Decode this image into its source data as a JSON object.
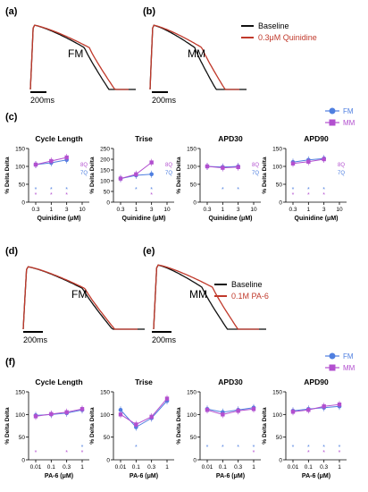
{
  "colors": {
    "fm": "#4f7fe0",
    "mm": "#b24fcf",
    "baseline": "#111111",
    "drug": "#c0392b",
    "sig_fm": "#4f7fe0",
    "sig_mm": "#b24fcf"
  },
  "trace_panels": [
    {
      "label": "(a)",
      "name": "FM",
      "scale": "200ms"
    },
    {
      "label": "(b)",
      "name": "MM",
      "scale": "200ms"
    },
    {
      "label": "(d)",
      "name": "FM",
      "scale": "200ms"
    },
    {
      "label": "(e)",
      "name": "MM",
      "scale": "200ms"
    }
  ],
  "legends": {
    "top": {
      "baseline": "Baseline",
      "drug": "0.3μM Quinidine"
    },
    "bottom": {
      "baseline": "Baseline",
      "drug": "0.1M PA-6"
    },
    "c": {
      "fm": "FM",
      "mm": "MM"
    },
    "f": {
      "fm": "FM",
      "mm": "MM"
    }
  },
  "panel_labels": {
    "c": "(c)",
    "f": "(f)"
  },
  "chart_data": [
    {
      "type": "line",
      "panel": "(c)",
      "title": "Cycle Length",
      "xlabel": "Quinidine (μM)",
      "ylabel": "% Delta Delta",
      "x": [
        "0.3",
        "1",
        "3",
        "10"
      ],
      "ylim": [
        0,
        150
      ],
      "yticks": [
        0,
        50,
        100,
        150
      ],
      "series": [
        {
          "name": "FM",
          "values": [
            105,
            110,
            118,
            null
          ],
          "n": "7Q"
        },
        {
          "name": "MM",
          "values": [
            105,
            115,
            125,
            null
          ],
          "n": "8Q"
        }
      ],
      "sig": {
        "FM": [
          "*",
          "*",
          "*"
        ],
        "MM": [
          "*",
          "*",
          "*"
        ]
      }
    },
    {
      "type": "line",
      "panel": "(c)",
      "title": "Trise",
      "xlabel": "Quinidine (μM)",
      "ylabel": "% Delta Delta",
      "x": [
        "0.3",
        "1",
        "3",
        "10"
      ],
      "ylim": [
        0,
        250
      ],
      "yticks": [
        0,
        50,
        100,
        150,
        200,
        250
      ],
      "series": [
        {
          "name": "FM",
          "values": [
            110,
            125,
            130,
            null
          ],
          "n": "7Q"
        },
        {
          "name": "MM",
          "values": [
            110,
            130,
            185,
            null
          ],
          "n": "8Q"
        }
      ],
      "sig": {
        "FM": [
          "",
          "*",
          "*"
        ],
        "MM": [
          "",
          "",
          "*"
        ]
      }
    },
    {
      "type": "line",
      "panel": "(c)",
      "title": "APD30",
      "xlabel": "Quinidine (μM)",
      "ylabel": "% Delta Delta",
      "x": [
        "0.3",
        "1",
        "3",
        "10"
      ],
      "ylim": [
        0,
        150
      ],
      "yticks": [
        0,
        50,
        100,
        150
      ],
      "series": [
        {
          "name": "FM",
          "values": [
            100,
            98,
            100,
            null
          ],
          "n": "7Q"
        },
        {
          "name": "MM",
          "values": [
            100,
            96,
            98,
            null
          ],
          "n": "8Q"
        }
      ],
      "sig": {
        "FM": [
          "",
          "*",
          "*"
        ],
        "MM": [
          "",
          "",
          ""
        ]
      }
    },
    {
      "type": "line",
      "panel": "(c)",
      "title": "APD90",
      "xlabel": "Quinidine (μM)",
      "ylabel": "% Delta Delta",
      "x": [
        "0.3",
        "1",
        "3",
        "10"
      ],
      "ylim": [
        0,
        150
      ],
      "yticks": [
        0,
        50,
        100,
        150
      ],
      "series": [
        {
          "name": "FM",
          "values": [
            112,
            118,
            122,
            null
          ],
          "n": "7Q"
        },
        {
          "name": "MM",
          "values": [
            108,
            113,
            120,
            null
          ],
          "n": "8Q"
        }
      ],
      "sig": {
        "FM": [
          "*",
          "*",
          "*"
        ],
        "MM": [
          "*",
          "*",
          "*"
        ]
      }
    },
    {
      "type": "line",
      "panel": "(f)",
      "title": "Cycle Length",
      "xlabel": "PA-6 (μM)",
      "ylabel": "% Delta Delta",
      "x": [
        "0.01",
        "0.1",
        "0.3",
        "1"
      ],
      "ylim": [
        0,
        150
      ],
      "yticks": [
        0,
        50,
        100,
        150
      ],
      "series": [
        {
          "name": "FM",
          "values": [
            98,
            100,
            103,
            110
          ],
          "n": ""
        },
        {
          "name": "MM",
          "values": [
            96,
            101,
            105,
            112
          ],
          "n": ""
        }
      ],
      "sig": {
        "FM": [
          "",
          "",
          "",
          "*"
        ],
        "MM": [
          "*",
          "",
          "*",
          "*"
        ]
      }
    },
    {
      "type": "line",
      "panel": "(f)",
      "title": "Trise",
      "xlabel": "PA-6 (μM)",
      "ylabel": "% Delta Delta",
      "x": [
        "0.01",
        "0.1",
        "0.3",
        "1"
      ],
      "ylim": [
        0,
        150
      ],
      "yticks": [
        0,
        50,
        100,
        150
      ],
      "series": [
        {
          "name": "FM",
          "values": [
            110,
            72,
            92,
            130
          ],
          "n": ""
        },
        {
          "name": "MM",
          "values": [
            100,
            78,
            95,
            135
          ],
          "n": ""
        }
      ],
      "sig": {
        "FM": [
          "",
          "*",
          "",
          ""
        ],
        "MM": [
          "",
          "",
          "",
          ""
        ]
      }
    },
    {
      "type": "line",
      "panel": "(f)",
      "title": "APD30",
      "xlabel": "PA-6 (μM)",
      "ylabel": "% Delta Delta",
      "x": [
        "0.01",
        "0.1",
        "0.3",
        "1"
      ],
      "ylim": [
        0,
        150
      ],
      "yticks": [
        0,
        50,
        100,
        150
      ],
      "series": [
        {
          "name": "FM",
          "values": [
            112,
            105,
            110,
            115
          ],
          "n": ""
        },
        {
          "name": "MM",
          "values": [
            110,
            100,
            108,
            112
          ],
          "n": ""
        }
      ],
      "sig": {
        "FM": [
          "*",
          "*",
          "*",
          "*"
        ],
        "MM": [
          "",
          "",
          "",
          "*"
        ]
      }
    },
    {
      "type": "line",
      "panel": "(f)",
      "title": "APD90",
      "xlabel": "PA-6 (μM)",
      "ylabel": "% Delta Delta",
      "x": [
        "0.01",
        "0.1",
        "0.3",
        "1"
      ],
      "ylim": [
        0,
        150
      ],
      "yticks": [
        0,
        50,
        100,
        150
      ],
      "series": [
        {
          "name": "FM",
          "values": [
            108,
            112,
            115,
            118
          ],
          "n": ""
        },
        {
          "name": "MM",
          "values": [
            106,
            110,
            118,
            122
          ],
          "n": ""
        }
      ],
      "sig": {
        "FM": [
          "*",
          "*",
          "*",
          "*"
        ],
        "MM": [
          "",
          "*",
          "*",
          "*"
        ]
      }
    }
  ]
}
